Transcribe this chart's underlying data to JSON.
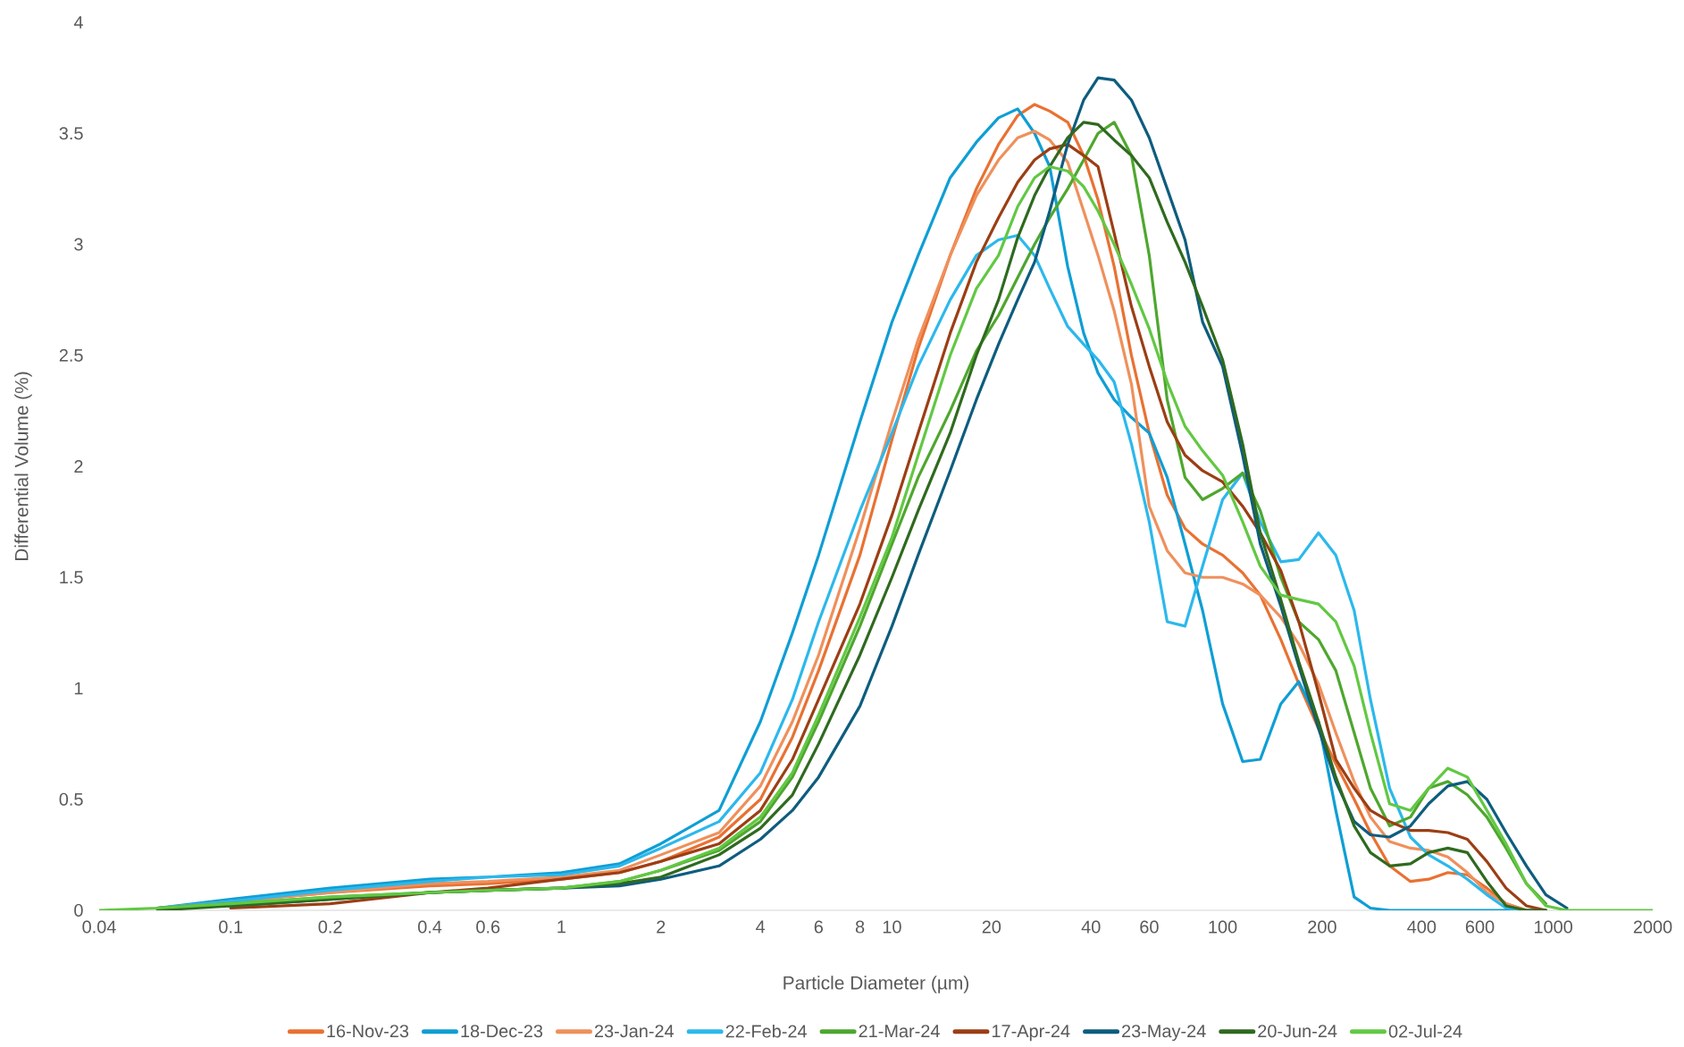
{
  "chart_data": {
    "type": "line",
    "xlabel": "Particle Diameter (µm)",
    "ylabel": "Differential Volume (%)",
    "log": "x",
    "legend": "bottom",
    "xlim": [
      0.04,
      2000
    ],
    "ylim": [
      0,
      4
    ],
    "xticks": [
      0.04,
      0.1,
      0.2,
      0.4,
      0.6,
      1,
      2,
      4,
      6,
      8,
      10,
      20,
      40,
      60,
      100,
      200,
      400,
      600,
      1000,
      2000
    ],
    "yticks": [
      0,
      0.5,
      1,
      1.5,
      2,
      2.5,
      3,
      3.5,
      4
    ],
    "x": [
      0.04,
      0.06,
      0.1,
      0.2,
      0.4,
      0.6,
      1,
      1.5,
      2,
      3,
      4,
      5,
      6,
      8,
      10,
      12,
      15,
      18,
      21,
      24,
      27,
      30,
      34,
      38,
      42,
      47,
      53,
      60,
      68,
      77,
      87,
      100,
      115,
      130,
      150,
      170,
      195,
      220,
      250,
      280,
      320,
      370,
      420,
      480,
      550,
      630,
      720,
      830,
      950,
      1100,
      1300,
      2000
    ],
    "series": [
      {
        "name": "16-Nov-23",
        "color": "#e97132",
        "values": [
          null,
          0.01,
          0.04,
          0.08,
          0.11,
          0.12,
          0.14,
          0.17,
          0.22,
          0.33,
          0.5,
          0.78,
          1.08,
          1.6,
          2.12,
          2.53,
          2.95,
          3.25,
          3.45,
          3.58,
          3.63,
          3.6,
          3.55,
          3.4,
          3.2,
          2.9,
          2.5,
          2.15,
          1.87,
          1.72,
          1.65,
          1.6,
          1.52,
          1.42,
          1.22,
          1.02,
          0.82,
          0.66,
          0.5,
          0.35,
          0.2,
          0.13,
          0.14,
          0.17,
          0.16,
          0.1,
          0.03,
          0,
          0,
          null,
          null,
          null
        ]
      },
      {
        "name": "18-Dec-23",
        "color": "#0f9ed5",
        "values": [
          null,
          0.01,
          0.05,
          0.1,
          0.14,
          0.15,
          0.17,
          0.21,
          0.3,
          0.45,
          0.85,
          1.25,
          1.6,
          2.2,
          2.65,
          2.95,
          3.3,
          3.46,
          3.57,
          3.61,
          3.5,
          3.35,
          2.9,
          2.6,
          2.42,
          2.3,
          2.22,
          2.15,
          1.95,
          1.65,
          1.35,
          0.93,
          0.67,
          0.68,
          0.93,
          1.03,
          0.85,
          0.45,
          0.06,
          0.01,
          0,
          0,
          0,
          0,
          0,
          0,
          0,
          0,
          0,
          null,
          null,
          null
        ]
      },
      {
        "name": "23-Jan-24",
        "color": "#ef905c",
        "values": [
          null,
          0.01,
          0.04,
          0.08,
          0.12,
          0.13,
          0.15,
          0.18,
          0.25,
          0.35,
          0.56,
          0.85,
          1.15,
          1.72,
          2.2,
          2.57,
          2.95,
          3.22,
          3.38,
          3.48,
          3.51,
          3.47,
          3.37,
          3.15,
          2.95,
          2.7,
          2.37,
          1.82,
          1.62,
          1.52,
          1.5,
          1.5,
          1.47,
          1.42,
          1.32,
          1.2,
          1.02,
          0.8,
          0.58,
          0.42,
          0.31,
          0.28,
          0.27,
          0.24,
          0.17,
          0.08,
          0.03,
          0,
          0,
          null,
          null,
          null
        ]
      },
      {
        "name": "22-Feb-24",
        "color": "#2cb8ec",
        "values": [
          null,
          0.01,
          0.04,
          0.09,
          0.13,
          0.15,
          0.16,
          0.2,
          0.28,
          0.4,
          0.62,
          0.95,
          1.3,
          1.8,
          2.15,
          2.45,
          2.75,
          2.95,
          3.02,
          3.04,
          2.95,
          2.8,
          2.63,
          2.55,
          2.48,
          2.38,
          2.1,
          1.75,
          1.3,
          1.28,
          1.55,
          1.85,
          1.97,
          1.75,
          1.57,
          1.58,
          1.7,
          1.6,
          1.35,
          0.95,
          0.55,
          0.33,
          0.25,
          0.2,
          0.14,
          0.07,
          0.01,
          0,
          0,
          null,
          null,
          null
        ]
      },
      {
        "name": "21-Mar-24",
        "color": "#4ea72e",
        "values": [
          null,
          0.01,
          0.03,
          0.06,
          0.08,
          0.09,
          0.1,
          0.13,
          0.18,
          0.27,
          0.4,
          0.6,
          0.85,
          1.28,
          1.65,
          1.95,
          2.25,
          2.52,
          2.68,
          2.85,
          3.0,
          3.12,
          3.25,
          3.38,
          3.5,
          3.55,
          3.4,
          2.95,
          2.3,
          1.95,
          1.85,
          1.9,
          1.97,
          1.8,
          1.5,
          1.3,
          1.22,
          1.08,
          0.8,
          0.55,
          0.38,
          0.42,
          0.55,
          0.58,
          0.52,
          0.42,
          0.28,
          0.12,
          0.03,
          null,
          null,
          null
        ]
      },
      {
        "name": "17-Apr-24",
        "color": "#9c3e14",
        "values": [
          null,
          null,
          0.01,
          0.03,
          0.08,
          0.1,
          0.14,
          0.17,
          0.22,
          0.3,
          0.45,
          0.68,
          0.95,
          1.38,
          1.78,
          2.15,
          2.6,
          2.92,
          3.12,
          3.28,
          3.38,
          3.43,
          3.45,
          3.4,
          3.35,
          3.05,
          2.72,
          2.45,
          2.2,
          2.05,
          1.98,
          1.93,
          1.82,
          1.7,
          1.53,
          1.3,
          0.98,
          0.68,
          0.55,
          0.45,
          0.4,
          0.36,
          0.36,
          0.35,
          0.32,
          0.22,
          0.1,
          0.02,
          0,
          null,
          null,
          null
        ]
      },
      {
        "name": "23-May-24",
        "color": "#0e5d7e",
        "values": [
          null,
          null,
          0.02,
          0.05,
          0.08,
          0.09,
          0.1,
          0.11,
          0.14,
          0.2,
          0.32,
          0.45,
          0.6,
          0.92,
          1.28,
          1.6,
          1.98,
          2.3,
          2.55,
          2.75,
          2.92,
          3.15,
          3.45,
          3.65,
          3.75,
          3.74,
          3.65,
          3.48,
          3.25,
          3.02,
          2.65,
          2.45,
          2.05,
          1.65,
          1.37,
          1.1,
          0.82,
          0.58,
          0.4,
          0.34,
          0.33,
          0.38,
          0.48,
          0.56,
          0.58,
          0.5,
          0.35,
          0.2,
          0.07,
          0.01,
          null,
          null
        ]
      },
      {
        "name": "20-Jun-24",
        "color": "#2f6a1f",
        "values": [
          null,
          0,
          0.02,
          0.05,
          0.08,
          0.09,
          0.1,
          0.12,
          0.15,
          0.25,
          0.37,
          0.52,
          0.75,
          1.15,
          1.5,
          1.8,
          2.15,
          2.5,
          2.75,
          3.03,
          3.22,
          3.35,
          3.48,
          3.55,
          3.54,
          3.47,
          3.4,
          3.3,
          3.1,
          2.92,
          2.72,
          2.48,
          2.1,
          1.7,
          1.4,
          1.12,
          0.85,
          0.6,
          0.38,
          0.26,
          0.2,
          0.21,
          0.26,
          0.28,
          0.26,
          0.13,
          0.02,
          0,
          0,
          null,
          null,
          null
        ]
      },
      {
        "name": "02-Jul-24",
        "color": "#62c843",
        "values": [
          0,
          0.01,
          0.03,
          0.06,
          0.08,
          0.09,
          0.1,
          0.13,
          0.18,
          0.28,
          0.42,
          0.62,
          0.88,
          1.32,
          1.68,
          2.05,
          2.5,
          2.8,
          2.95,
          3.17,
          3.3,
          3.35,
          3.33,
          3.26,
          3.15,
          3.0,
          2.82,
          2.62,
          2.38,
          2.18,
          2.07,
          1.96,
          1.75,
          1.55,
          1.42,
          1.4,
          1.38,
          1.3,
          1.1,
          0.8,
          0.48,
          0.45,
          0.55,
          0.64,
          0.6,
          0.45,
          0.3,
          0.12,
          0.02,
          0,
          0,
          0
        ]
      }
    ]
  }
}
